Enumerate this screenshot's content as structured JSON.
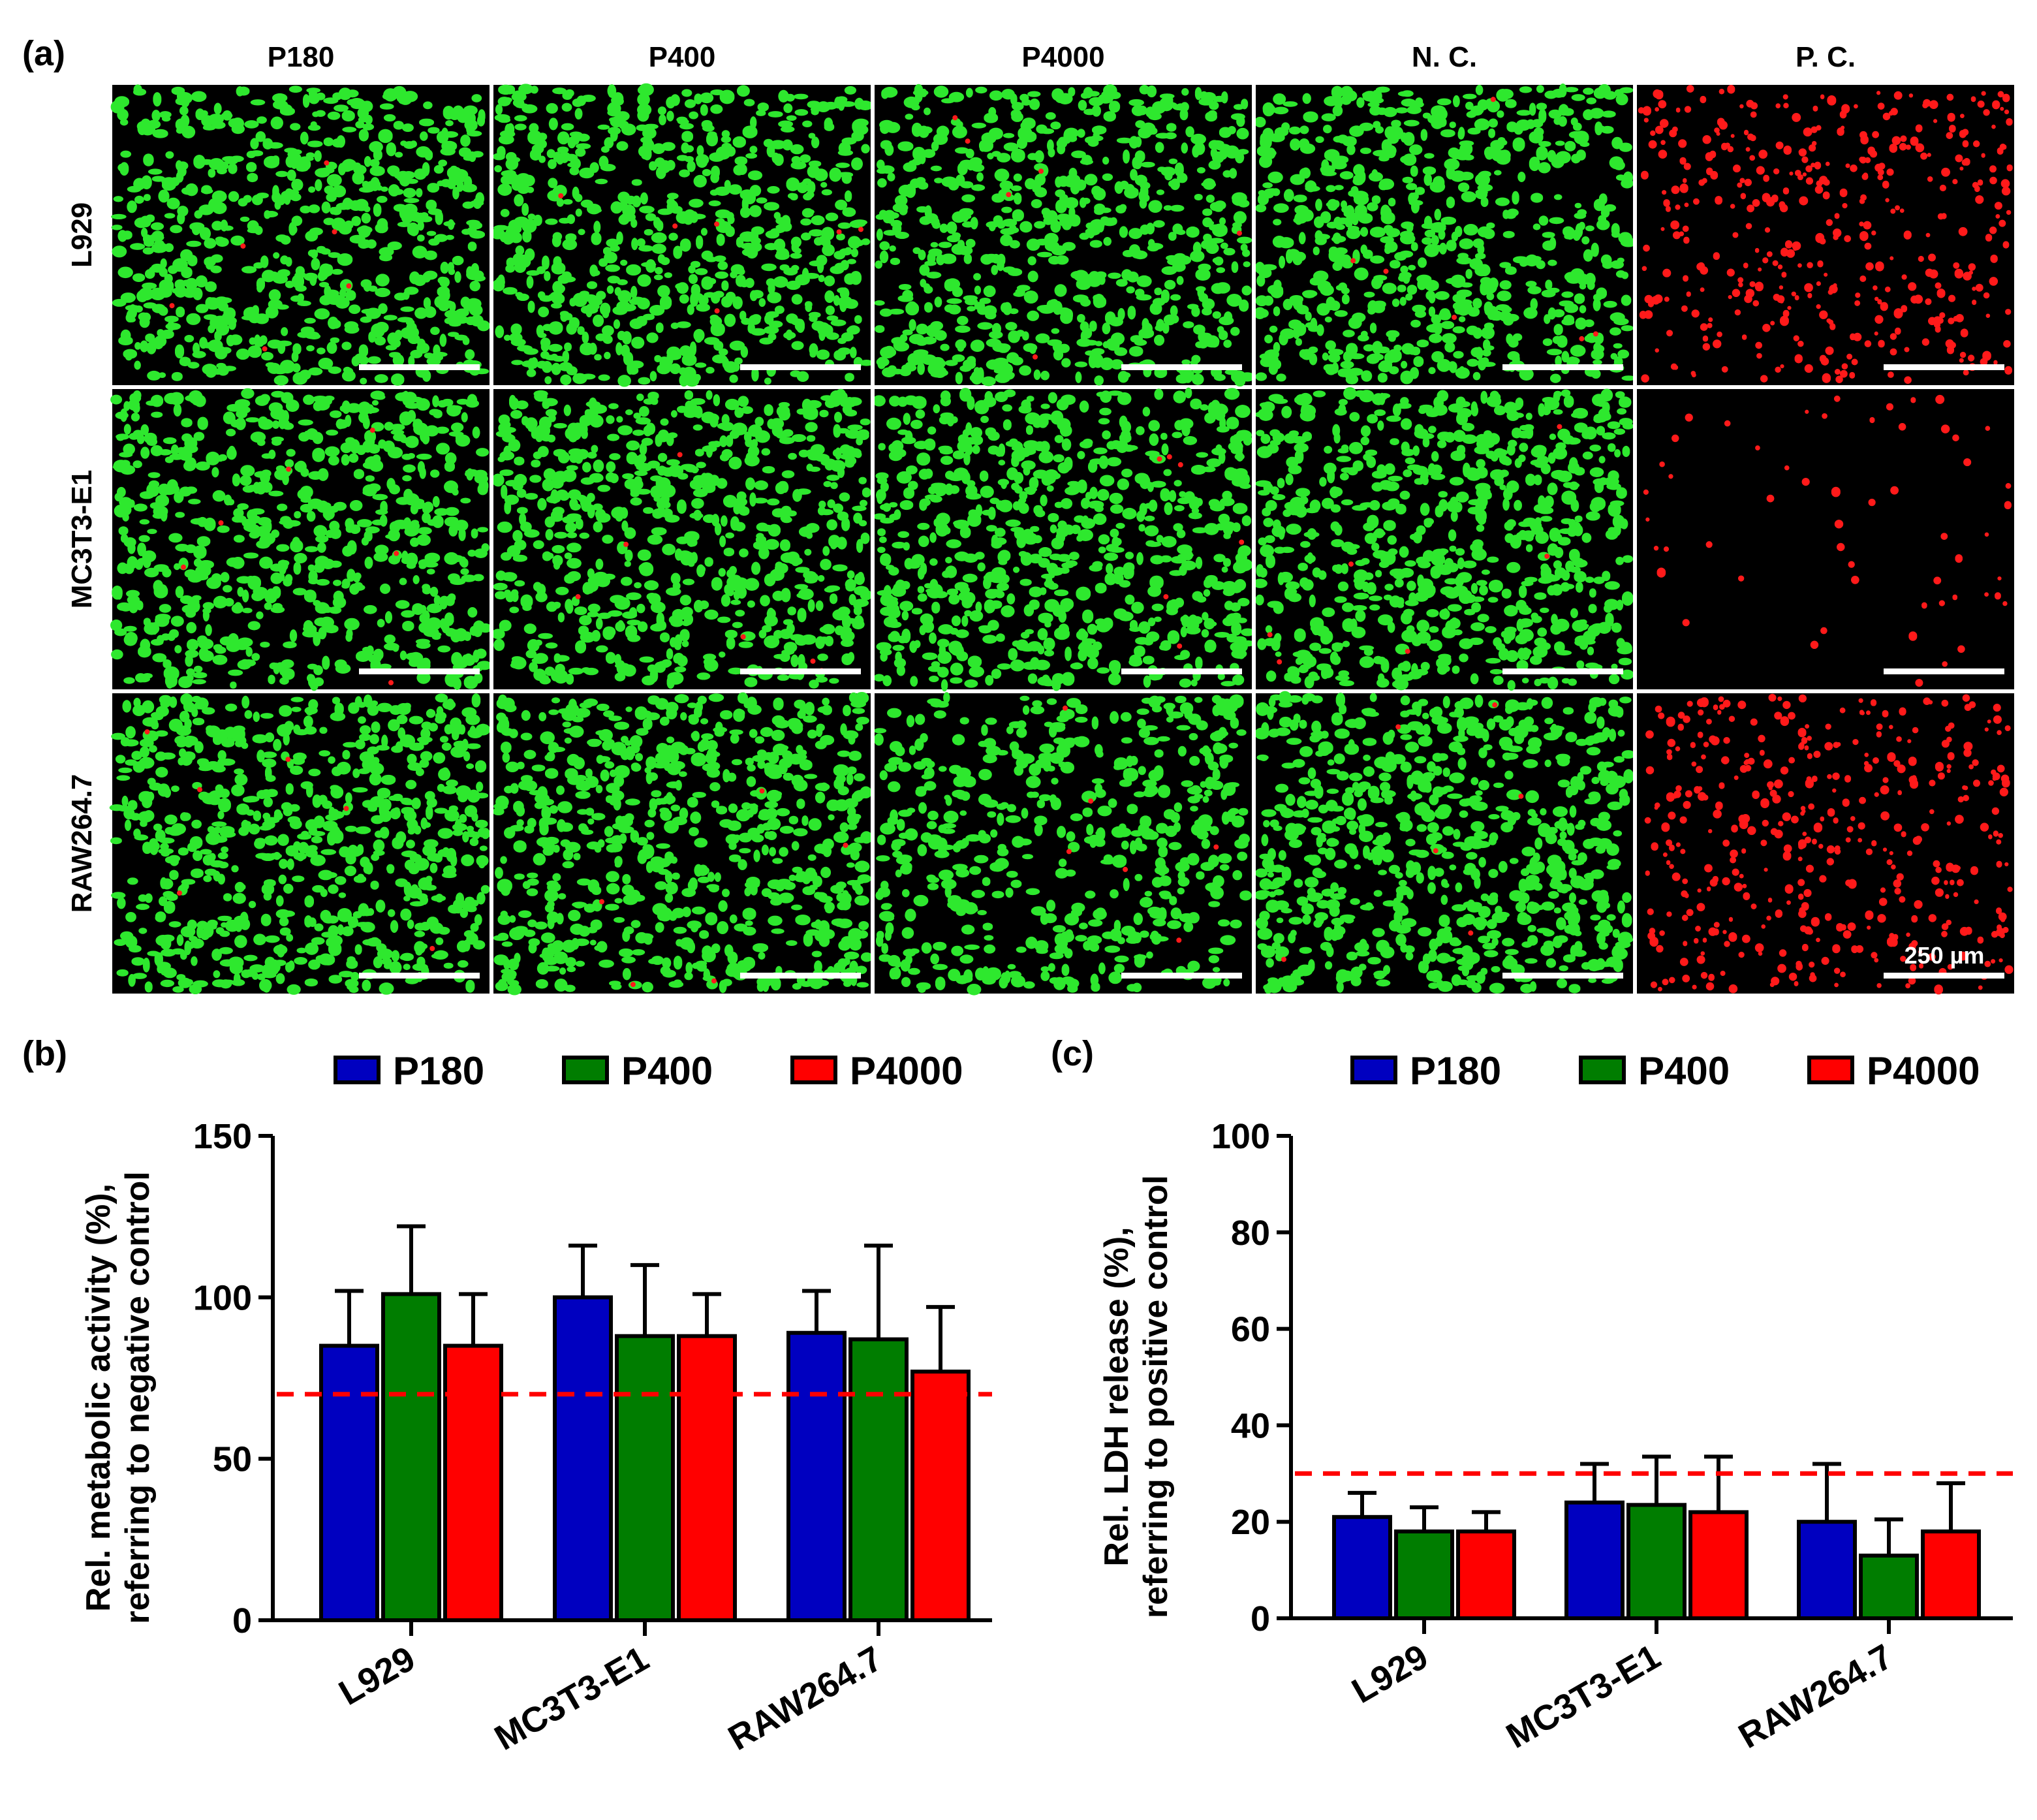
{
  "panel_a": {
    "label": "(a)",
    "columns": [
      "P180",
      "P400",
      "P4000",
      "N. C.",
      "P. C."
    ],
    "rows": [
      "L929",
      "MC3T3-E1",
      "RAW264.7"
    ],
    "scale_bar_label": "250 µm",
    "colors": {
      "live": "#2ee82e",
      "dead": "#ff1a1a",
      "background": "#000000"
    }
  },
  "panel_b_label": "(b)",
  "panel_c_label": "(c)",
  "chart_data": [
    {
      "type": "bar",
      "panel": "(b)",
      "categories": [
        "L929",
        "MC3T3-E1",
        "RAW264.7"
      ],
      "series": [
        {
          "name": "P180",
          "color": "#0000c0",
          "values": [
            85,
            100,
            89
          ],
          "errors": [
            17,
            16,
            13
          ]
        },
        {
          "name": "P400",
          "color": "#007d00",
          "values": [
            101,
            88,
            87
          ],
          "errors": [
            21,
            22,
            29
          ]
        },
        {
          "name": "P4000",
          "color": "#ff0000",
          "values": [
            85,
            88,
            77
          ],
          "errors": [
            16,
            13,
            20
          ]
        }
      ],
      "ylabel_line1": "Rel. metabolic activity (%),",
      "ylabel_line2": "referring to negative control",
      "ylim": [
        0,
        150
      ],
      "yticks": [
        0,
        50,
        100,
        150
      ],
      "threshold": 70,
      "threshold_color": "#ff0000",
      "legend_position": "top"
    },
    {
      "type": "bar",
      "panel": "(c)",
      "categories": [
        "L929",
        "MC3T3-E1",
        "RAW264.7"
      ],
      "series": [
        {
          "name": "P180",
          "color": "#0000c0",
          "values": [
            21,
            24,
            20
          ],
          "errors": [
            5,
            8,
            12
          ]
        },
        {
          "name": "P400",
          "color": "#007d00",
          "values": [
            18,
            23.5,
            13
          ],
          "errors": [
            5,
            10,
            7.5
          ]
        },
        {
          "name": "P4000",
          "color": "#ff0000",
          "values": [
            18,
            22,
            18
          ],
          "errors": [
            4,
            11.5,
            10
          ]
        }
      ],
      "ylabel_line1": "Rel. LDH release (%),",
      "ylabel_line2": "referring to positive control",
      "ylim": [
        0,
        100
      ],
      "yticks": [
        0,
        20,
        40,
        60,
        80,
        100
      ],
      "threshold": 30,
      "threshold_color": "#ff0000",
      "legend_position": "top"
    }
  ]
}
